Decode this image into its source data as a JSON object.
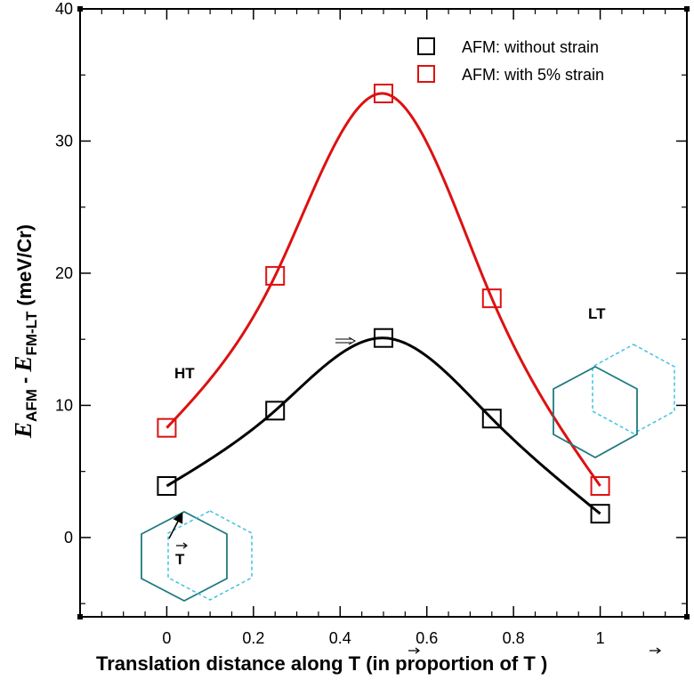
{
  "chart_data": {
    "type": "line",
    "title": "",
    "xlabel": "Translation distance along T (in proportion of T )",
    "xlabel_parts": [
      "Translation distance along ",
      "T",
      " (in proportion of ",
      "T",
      " )"
    ],
    "ylabel": "E_AFM - E_FM-LT (meV/Cr)",
    "ylabel_parts": {
      "e1": "E",
      "sub1": "AFM",
      "minus": " - ",
      "e2": "E",
      "sub2": "FM-LT",
      "unit": " (meV/Cr)"
    },
    "xlim": [
      -0.2,
      1.2
    ],
    "ylim": [
      -6,
      40
    ],
    "x_ticks": [
      0,
      0.2,
      0.4,
      0.6,
      0.8,
      1
    ],
    "x_tick_labels": [
      "0",
      "0.2",
      "0.4",
      "0.6",
      "0.8",
      "1"
    ],
    "y_ticks": [
      0,
      10,
      20,
      30,
      40
    ],
    "y_tick_labels": [
      "0",
      "10",
      "20",
      "30",
      "40"
    ],
    "x": [
      0,
      0.25,
      0.5,
      0.75,
      1
    ],
    "series": [
      {
        "name": "AFM: without strain",
        "color": "#000000",
        "values": [
          3.9,
          9.6,
          15.1,
          9.0,
          1.8
        ]
      },
      {
        "name": "AFM: with 5% strain",
        "color": "#dd1111",
        "values": [
          8.3,
          19.8,
          33.6,
          18.1,
          3.9
        ]
      }
    ],
    "legend_position": "top-right",
    "annotations": {
      "ht": "HT",
      "lt": "LT",
      "t_vector": "T"
    }
  },
  "colors": {
    "hexagon_solid": "#1f7a80",
    "hexagon_dashed": "#3fc3e0"
  }
}
